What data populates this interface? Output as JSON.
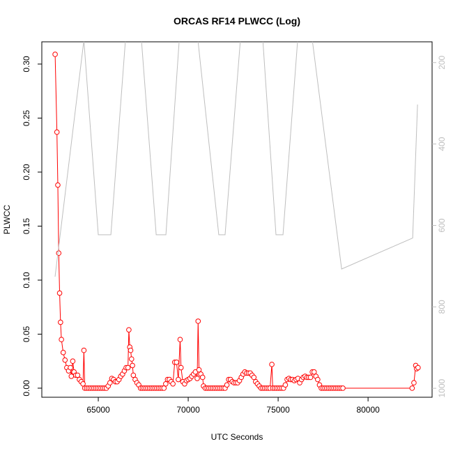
{
  "chart_data": {
    "type": "line",
    "title": "ORCAS RF14 PLWCC (Log)",
    "x_label": "UTC Seconds",
    "y_label": "PLWCC",
    "xlim": [
      61860,
      83560
    ],
    "ylim": [
      -0.0084,
      0.3206
    ],
    "y2lim": [
      1022,
      149
    ],
    "xticks": [
      65000,
      70000,
      75000,
      80000
    ],
    "yticks": [
      {
        "value": 0,
        "label": "0.00"
      },
      {
        "value": 0.05,
        "label": "0.05"
      },
      {
        "value": 0.1,
        "label": "0.10"
      },
      {
        "value": 0.15,
        "label": "0.15"
      },
      {
        "value": 0.2,
        "label": "0.20"
      },
      {
        "value": 0.25,
        "label": "0.25"
      },
      {
        "value": 0.3,
        "label": "0.30"
      }
    ],
    "y2ticks": [
      200,
      400,
      600,
      800,
      1000
    ],
    "y2_color": "#bebebe",
    "series": [
      {
        "color": "#ff0000",
        "marker": "circle",
        "x": [
          62600,
          62700,
          62750,
          62800,
          62850,
          62900,
          62950,
          63050,
          63150,
          63250,
          63350,
          63450,
          63500,
          63580,
          63650,
          63750,
          63850,
          63950,
          64050,
          64150,
          64200,
          64250,
          64350,
          64450,
          64550,
          64650,
          64750,
          64850,
          64950,
          65050,
          65150,
          65250,
          65350,
          65450,
          65550,
          65650,
          65750,
          65850,
          65950,
          66050,
          66150,
          66250,
          66350,
          66450,
          66550,
          66650,
          66700,
          66750,
          66800,
          66850,
          66900,
          66950,
          67050,
          67150,
          67250,
          67350,
          67450,
          67550,
          67650,
          67750,
          67850,
          67950,
          68050,
          68150,
          68250,
          68350,
          68450,
          68550,
          68650,
          68750,
          68850,
          68950,
          69050,
          69150,
          69250,
          69350,
          69450,
          69550,
          69600,
          69700,
          69800,
          69900,
          70000,
          70100,
          70200,
          70300,
          70400,
          70500,
          70550,
          70600,
          70700,
          70800,
          70850,
          70950,
          71050,
          71150,
          71250,
          71350,
          71450,
          71550,
          71650,
          71750,
          71850,
          71950,
          72050,
          72150,
          72250,
          72350,
          72450,
          72550,
          72650,
          72750,
          72850,
          72950,
          73050,
          73150,
          73250,
          73350,
          73450,
          73550,
          73650,
          73750,
          73850,
          73950,
          74050,
          74150,
          74250,
          74350,
          74450,
          74550,
          74650,
          74700,
          74800,
          74900,
          75000,
          75100,
          75200,
          75300,
          75400,
          75500,
          75600,
          75700,
          75800,
          75900,
          76000,
          76100,
          76200,
          76300,
          76400,
          76500,
          76600,
          76700,
          76800,
          76900,
          77000,
          77100,
          77200,
          77300,
          77400,
          77500,
          77600,
          77700,
          77800,
          77900,
          78000,
          78100,
          78200,
          78300,
          78400,
          78500,
          78600,
          82450,
          82550,
          82650,
          82700,
          82780
        ],
        "values": [
          0.309,
          0.237,
          0.188,
          0.125,
          0.088,
          0.061,
          0.045,
          0.033,
          0.026,
          0.019,
          0.016,
          0.019,
          0.011,
          0.025,
          0.015,
          0.012,
          0.012,
          0.008,
          0.006,
          0.004,
          0.035,
          0,
          0,
          0,
          0,
          0,
          0,
          0,
          0,
          0,
          0,
          0,
          0,
          0,
          0.002,
          0.005,
          0.009,
          0.008,
          0.006,
          0.006,
          0.008,
          0.011,
          0.013,
          0.016,
          0.019,
          0.019,
          0.054,
          0.038,
          0.035,
          0.027,
          0.021,
          0.012,
          0.008,
          0.005,
          0.003,
          0,
          0,
          0,
          0,
          0,
          0,
          0,
          0,
          0,
          0,
          0,
          0,
          0,
          0,
          0.004,
          0.008,
          0.008,
          0.006,
          0.004,
          0.024,
          0.024,
          0.008,
          0.045,
          0.019,
          0.006,
          0.004,
          0.007,
          0.008,
          0.009,
          0.011,
          0.013,
          0.015,
          0.009,
          0.062,
          0.017,
          0.013,
          0.01,
          0.002,
          0,
          0,
          0,
          0,
          0,
          0,
          0,
          0,
          0,
          0,
          0,
          0,
          0.003,
          0.008,
          0.008,
          0.006,
          0.005,
          0.005,
          0.005,
          0.007,
          0.01,
          0.013,
          0.015,
          0.014,
          0.014,
          0.014,
          0.012,
          0.01,
          0.006,
          0.004,
          0.002,
          0,
          0,
          0,
          0,
          0,
          0,
          0.022,
          0,
          0,
          0,
          0,
          0,
          0,
          0,
          0.003,
          0.008,
          0.009,
          0.008,
          0.008,
          0.007,
          0.008,
          0.009,
          0.005,
          0.008,
          0.01,
          0.011,
          0.01,
          0.01,
          0.01,
          0.015,
          0.015,
          0.011,
          0.008,
          0.003,
          0,
          0,
          0,
          0,
          0,
          0,
          0,
          0,
          0,
          0,
          0,
          0,
          0,
          0,
          0.005,
          0.021,
          0.018,
          0.019
        ]
      },
      {
        "color": "#bebebe",
        "axis": "y2",
        "x": [
          62596,
          64200,
          65000,
          65700,
          66510,
          67400,
          68220,
          68760,
          69500,
          70540,
          71700,
          72050,
          72900,
          74150,
          74880,
          75270,
          76085,
          76900,
          78530,
          82480,
          82750
        ],
        "values": [
          726,
          145,
          623,
          623,
          145,
          145,
          623,
          623,
          145,
          145,
          623,
          623,
          145,
          145,
          623,
          623,
          145,
          145,
          707,
          631,
          303
        ]
      }
    ]
  }
}
